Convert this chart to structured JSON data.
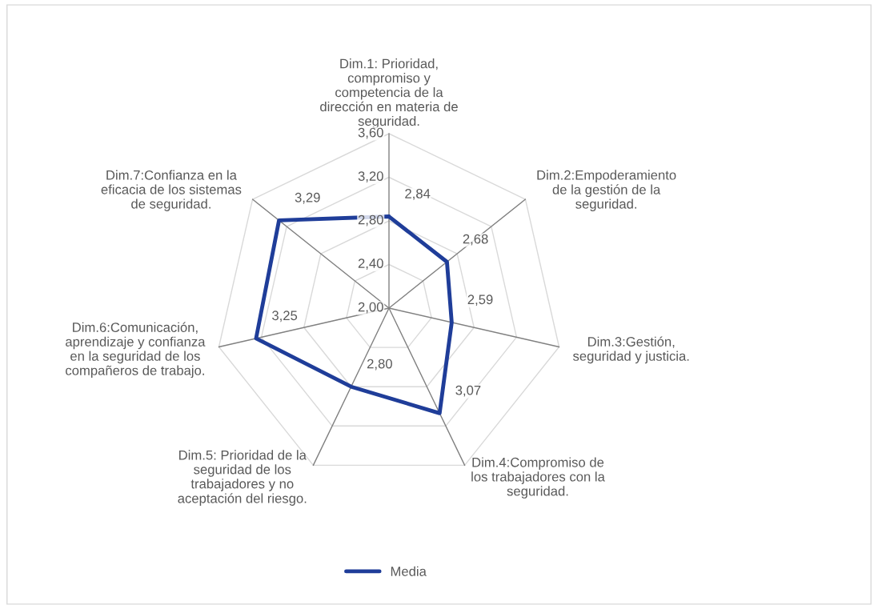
{
  "chart_data": {
    "type": "radar",
    "categories": [
      "Dim.1: Prioridad,\ncompromiso y\ncompetencia de la\ndirección en materia de\nseguridad.",
      "Dim.2:Empoderamiento\nde la gestión de la\nseguridad.",
      "Dim.3:Gestión,\nseguridad y justicia.",
      "Dim.4:Compromiso de\nlos trabajadores con la\nseguridad.",
      "Dim.5: Prioridad de la\nseguridad de los\ntrabajadores y no\naceptación del riesgo.",
      "Dim.6:Comunicación,\naprendizaje y confianza\nen la seguridad de los\ncompañeros de trabajo.",
      "Dim.7:Confianza en la\neficacia de los sistemas\nde seguridad."
    ],
    "series": [
      {
        "name": "Media",
        "color": "#1f3d99",
        "values": [
          2.84,
          2.68,
          2.59,
          3.07,
          2.8,
          3.25,
          3.29
        ],
        "value_labels": [
          "2,84",
          "2,68",
          "2,59",
          "3,07",
          "2,80",
          "3,25",
          "3,29"
        ]
      }
    ],
    "ylim": [
      2.0,
      3.6
    ],
    "yticks": [
      {
        "value": 2.0,
        "label": "2,00"
      },
      {
        "value": 2.4,
        "label": "2,40"
      },
      {
        "value": 2.8,
        "label": "2,80"
      },
      {
        "value": 3.2,
        "label": "3,20"
      },
      {
        "value": 3.6,
        "label": "3,60"
      }
    ],
    "grid": true,
    "legend": "bottom"
  }
}
